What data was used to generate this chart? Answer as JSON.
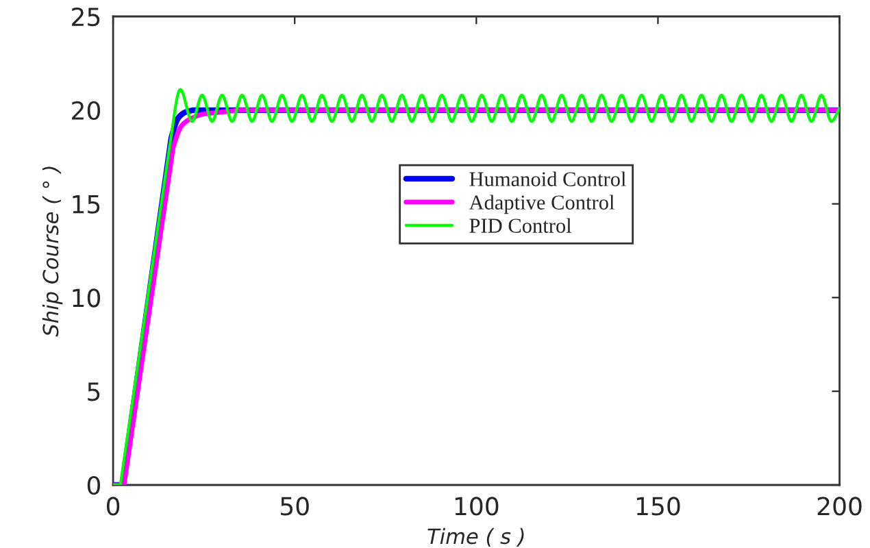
{
  "chart_data": {
    "type": "line",
    "xlabel": "Time ( s )",
    "ylabel": "Ship Course ( ° )",
    "xlim": [
      0,
      200
    ],
    "xticks": [
      0,
      50,
      100,
      150,
      200
    ],
    "ylim": [
      0,
      25
    ],
    "yticks": [
      0,
      5,
      10,
      15,
      20,
      25
    ],
    "grid": false,
    "legend": "top",
    "marker": "none",
    "line_style": "solid",
    "series": [
      {
        "name": "Humanoid Control",
        "color": "#0000ff",
        "x": [
          0,
          2.5,
          16,
          18,
          20,
          22,
          200
        ],
        "values": [
          0,
          0,
          18.5,
          19.6,
          19.9,
          20,
          20
        ]
      },
      {
        "name": "Adaptive Control",
        "color": "#ff00ff",
        "x": [
          0,
          3,
          16.5,
          19,
          22,
          25,
          35,
          200
        ],
        "values": [
          0,
          0,
          18,
          19.2,
          19.6,
          19.8,
          20,
          20
        ]
      },
      {
        "name": "PID Control",
        "color": "#00ff00",
        "x": [
          0,
          2,
          15.5,
          18.5,
          21.75,
          24.5,
          27.25,
          30,
          32.75,
          35.5,
          38.25,
          41,
          43.75,
          46.5,
          49.25,
          52,
          54.75,
          57.5,
          60.25,
          63,
          65.75,
          68.5,
          71.25,
          74,
          76.75,
          79.5,
          82.25,
          85,
          87.75,
          90.5,
          93.25,
          96,
          98.75,
          101.5,
          104.25,
          107,
          109.75,
          112.5,
          115.25,
          118,
          120.75,
          123.5,
          126.25,
          129,
          131.75,
          134.5,
          137.25,
          140,
          142.75,
          145.5,
          148.25,
          151,
          153.75,
          156.5,
          159.25,
          162,
          164.75,
          167.5,
          170.25,
          173,
          175.75,
          178.5,
          181.25,
          184,
          186.75,
          189.5,
          192.25,
          195,
          197.75,
          200
        ],
        "values": [
          0,
          0,
          18,
          21.1,
          19.4,
          20.8,
          19.4,
          20.8,
          19.4,
          20.8,
          19.4,
          20.8,
          19.4,
          20.8,
          19.4,
          20.8,
          19.4,
          20.8,
          19.4,
          20.8,
          19.4,
          20.8,
          19.4,
          20.8,
          19.4,
          20.8,
          19.4,
          20.8,
          19.4,
          20.8,
          19.4,
          20.8,
          19.4,
          20.8,
          19.4,
          20.8,
          19.4,
          20.8,
          19.4,
          20.8,
          19.4,
          20.8,
          19.4,
          20.8,
          19.4,
          20.8,
          19.4,
          20.8,
          19.4,
          20.8,
          19.4,
          20.8,
          19.4,
          20.8,
          19.4,
          20.8,
          19.4,
          20.8,
          19.4,
          20.8,
          19.4,
          20.8,
          19.4,
          20.8,
          19.4,
          20.8,
          19.4,
          20.8,
          19.4,
          20.1
        ]
      }
    ]
  }
}
